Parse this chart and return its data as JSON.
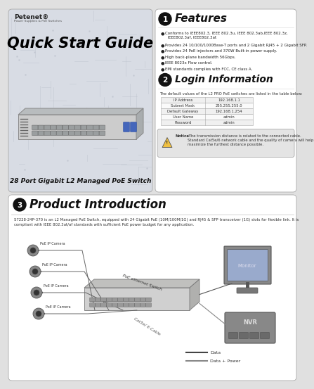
{
  "title": "Quick Start Guide",
  "subtitle": "28 Port Gigabit L2 Managed PoE Switch",
  "brand": "Petenet®",
  "brand_sub": "Power Supplies & PoE Switches",
  "section1_title": "Features",
  "features": [
    "Conforms to IEEE802.3, IEEE 802.3u, IEEE 802.3ab,IEEE 802.3z,\n  IEEE802.3af, IEEE802.3at",
    "Provides 24 10/100/1000Base-T ports and 2 Gigabit RJ45 + 2 Gigabit SFP.",
    "Provides 24 PoE injectors and 370W Built-in power supply.",
    "High back-plane bandwidth 56Gbps.",
    "IEEE 8023x Flow control.",
    "EMI standards complies with FCC, CE class A."
  ],
  "section2_title": "Login Information",
  "login_desc": "The default values of the L2 PRO PoE switches are listed in the table below:",
  "login_table": [
    [
      "IP Address",
      "192.168.1.1"
    ],
    [
      "Subnet Mask",
      "255.255.255.0"
    ],
    [
      "Default Gateway",
      "192.168.1.254"
    ],
    [
      "User Name",
      "admin"
    ],
    [
      "Password",
      "admin"
    ]
  ],
  "notice_bold": "Notice:",
  "notice_text": " The transmission distance is related to the connected cable. Standard Cat5e/6 network cable and the quality of camera will help maximize the furthest distance possible.",
  "section3_title": "Product Introduction",
  "product_desc": "S7228-24P-370 is an L2 Managed PoE Switch, equipped with 24 Gigabit PoE (10M/100M/1G) and RJ45 & SFP transceiver (1G) slots for flexible link. It is\ncompliant with IEEE 802.3at/af standards with sufficient PoE power budget for any application.",
  "poe_label": "PoE ethernet Switch",
  "cat_label": "Cat5e/ 6 Cable",
  "monitor_label": "Monitor",
  "nvr_label": "NVR",
  "cam_label": "PoE IP Camera",
  "legend": [
    "Data",
    "Data + Power"
  ],
  "bg_left": "#d8dce4",
  "bg_right": "#ffffff",
  "bg_bottom": "#ffffff",
  "bg_page": "#e0e0e0"
}
